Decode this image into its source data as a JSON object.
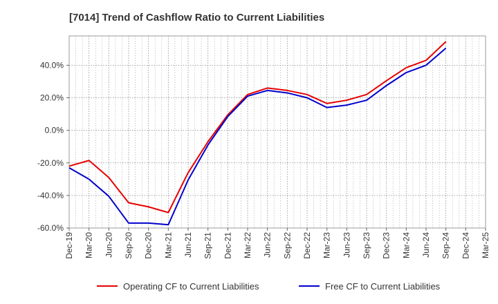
{
  "chart_data": {
    "type": "line",
    "title": "[7014]  Trend of Cashflow Ratio to Current Liabilities",
    "xlabel": "",
    "ylabel": "",
    "ylim": [
      -60,
      58
    ],
    "y_ticks": [
      -60,
      -40,
      -20,
      0,
      20,
      40
    ],
    "y_tick_labels": [
      "-60.0%",
      "-40.0%",
      "-20.0%",
      "0.0%",
      "20.0%",
      "40.0%"
    ],
    "x": [
      "Dec-19",
      "Mar-20",
      "Jun-20",
      "Sep-20",
      "Dec-20",
      "Mar-21",
      "Jun-21",
      "Sep-21",
      "Dec-21",
      "Mar-22",
      "Jun-22",
      "Sep-22",
      "Dec-22",
      "Mar-23",
      "Jun-23",
      "Sep-23",
      "Dec-23",
      "Mar-24",
      "Jun-24",
      "Sep-24",
      "Dec-24",
      "Mar-25"
    ],
    "grid": true,
    "legend_position": "bottom",
    "series": [
      {
        "name": "Operating CF to Current Liabilities",
        "color": "#e60000",
        "values": [
          -22,
          -18.5,
          -29,
          -44.5,
          -47,
          -50.5,
          -26,
          -7,
          9.5,
          22,
          26,
          24.5,
          22,
          16.5,
          18.5,
          22,
          30.5,
          38.5,
          43,
          54.5,
          null,
          null
        ]
      },
      {
        "name": "Free CF to Current Liabilities",
        "color": "#0000cc",
        "values": [
          -23,
          -30,
          -40.5,
          -57,
          -57,
          -58,
          -30.5,
          -9,
          8.5,
          21,
          24.5,
          23,
          20,
          14,
          15.5,
          18.5,
          27.5,
          35.5,
          40,
          50.5,
          null,
          null
        ]
      }
    ]
  }
}
